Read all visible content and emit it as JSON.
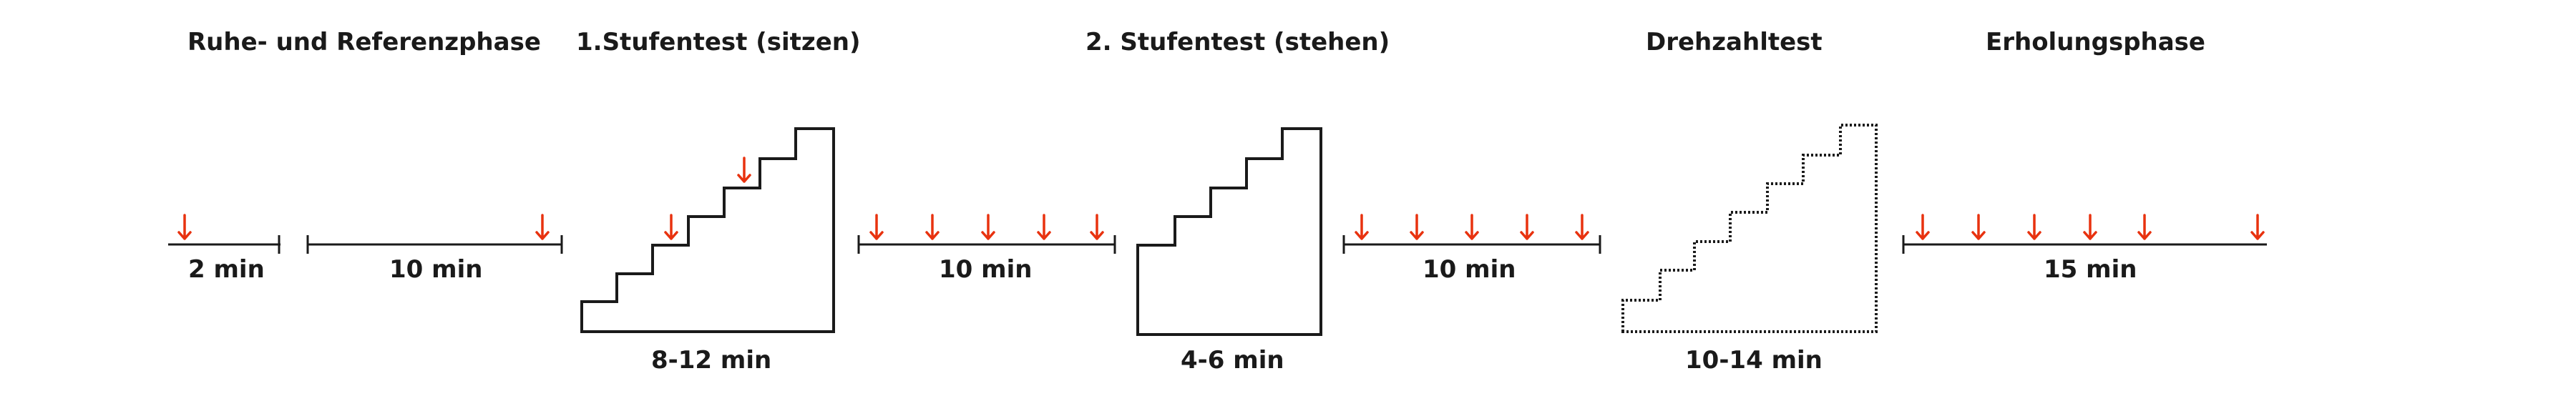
{
  "titles": {
    "rest": "Ruhe- und Referenzphase",
    "step1": "1.Stufentest (sitzen)",
    "step2": "2. Stufentest (stehen)",
    "rpm": "Drehzahltest",
    "recovery": "Erholungsphase"
  },
  "durations": {
    "d2": "2 min",
    "d10a": "10 min",
    "d10b": "10 min",
    "d10c": "10 min",
    "d15": "15 min",
    "step1": "8-12 min",
    "step2": "4-6 min",
    "rpm": "10-14 min"
  },
  "colors": {
    "arrow": "#e8320f",
    "line": "#1a1a1a"
  },
  "icons": {
    "sample_marker": "arrow-down-icon"
  }
}
